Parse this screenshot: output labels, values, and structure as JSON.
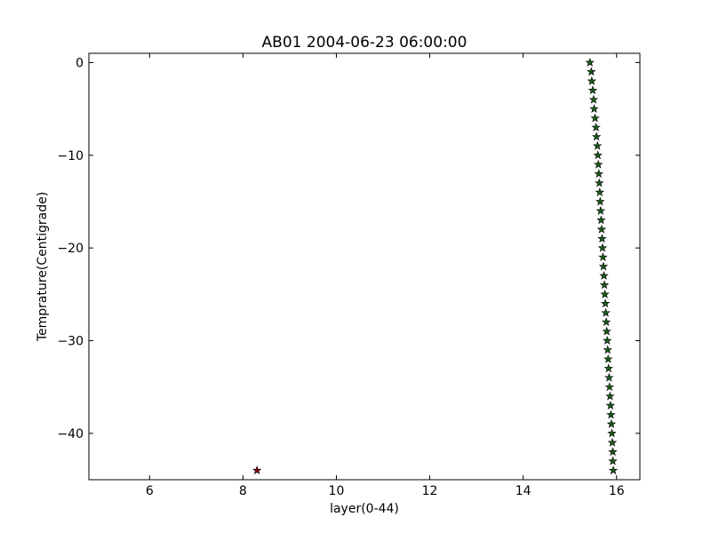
{
  "chart_data": {
    "type": "scatter",
    "title": "AB01 2004-06-23 06:00:00",
    "xlabel": "layer(0-44)",
    "ylabel": "Temprature(Centigrade)",
    "xlim": [
      4.7,
      16.5
    ],
    "ylim": [
      -45,
      1
    ],
    "x_ticks": [
      6,
      8,
      10,
      12,
      14,
      16
    ],
    "y_ticks": [
      0,
      -10,
      -20,
      -30,
      -40
    ],
    "x_tick_labels": [
      "6",
      "8",
      "10",
      "12",
      "14",
      "16"
    ],
    "y_tick_labels": [
      "0",
      "−10",
      "−20",
      "−30",
      "−40"
    ],
    "grid": false,
    "marker": "star",
    "series": [
      {
        "color": "#1a5c1a",
        "points": [
          [
            15.43,
            0
          ],
          [
            15.46,
            -1
          ],
          [
            15.47,
            -2
          ],
          [
            15.49,
            -3
          ],
          [
            15.51,
            -4
          ],
          [
            15.52,
            -5
          ],
          [
            15.54,
            -6
          ],
          [
            15.56,
            -7
          ],
          [
            15.57,
            -8
          ],
          [
            15.59,
            -9
          ],
          [
            15.6,
            -10
          ],
          [
            15.61,
            -11
          ],
          [
            15.62,
            -12
          ],
          [
            15.63,
            -13
          ],
          [
            15.64,
            -14
          ],
          [
            15.65,
            -15
          ],
          [
            15.66,
            -16
          ],
          [
            15.67,
            -17
          ],
          [
            15.68,
            -18
          ],
          [
            15.69,
            -19
          ],
          [
            15.7,
            -20
          ],
          [
            15.71,
            -21
          ],
          [
            15.72,
            -22
          ],
          [
            15.73,
            -23
          ],
          [
            15.74,
            -24
          ],
          [
            15.75,
            -25
          ],
          [
            15.76,
            -26
          ],
          [
            15.77,
            -27
          ],
          [
            15.78,
            -28
          ],
          [
            15.79,
            -29
          ],
          [
            15.8,
            -30
          ],
          [
            15.81,
            -31
          ],
          [
            15.82,
            -32
          ],
          [
            15.83,
            -33
          ],
          [
            15.84,
            -34
          ],
          [
            15.85,
            -35
          ],
          [
            15.86,
            -36
          ],
          [
            15.87,
            -37
          ],
          [
            15.88,
            -38
          ],
          [
            15.89,
            -39
          ],
          [
            15.9,
            -40
          ],
          [
            15.91,
            -41
          ],
          [
            15.92,
            -42
          ],
          [
            15.92,
            -43
          ],
          [
            15.93,
            -44
          ]
        ]
      },
      {
        "color": "#8b0000",
        "points": [
          [
            8.3,
            -44
          ]
        ]
      }
    ]
  }
}
